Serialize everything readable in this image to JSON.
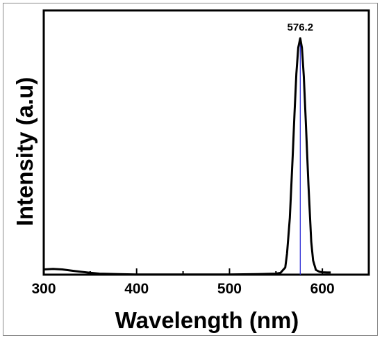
{
  "chart_data": {
    "type": "line",
    "title": "",
    "xlabel": "Wavelength (nm)",
    "ylabel": "Intensity (a.u)",
    "xlim": [
      300,
      650
    ],
    "ylim": [
      0,
      1.0
    ],
    "xticks": [
      300,
      400,
      500,
      600
    ],
    "xtick_labels": [
      "300",
      "400",
      "500",
      "600"
    ],
    "y_ticks_shown": false,
    "grid": false,
    "legend": "none",
    "series": [
      {
        "color": "#000000",
        "x": [
          300,
          310,
          320,
          330,
          340,
          350,
          360,
          380,
          400,
          450,
          500,
          530,
          550,
          555,
          560,
          562,
          565,
          568,
          570,
          572,
          574,
          576.2,
          578,
          580,
          582,
          585,
          588,
          590,
          593,
          597,
          600,
          605,
          609
        ],
        "y": [
          0.022,
          0.024,
          0.022,
          0.017,
          0.012,
          0.008,
          0.004,
          0.002,
          0.001,
          0.001,
          0.001,
          0.002,
          0.004,
          0.008,
          0.03,
          0.09,
          0.24,
          0.5,
          0.68,
          0.85,
          0.96,
          1.0,
          0.96,
          0.84,
          0.66,
          0.38,
          0.14,
          0.06,
          0.02,
          0.012,
          0.01,
          0.009,
          0.009
        ]
      }
    ],
    "annotations": [
      {
        "text": "576.2",
        "x": 576.2,
        "y": 1.0,
        "vline_color": "#2b2bd6"
      }
    ]
  }
}
